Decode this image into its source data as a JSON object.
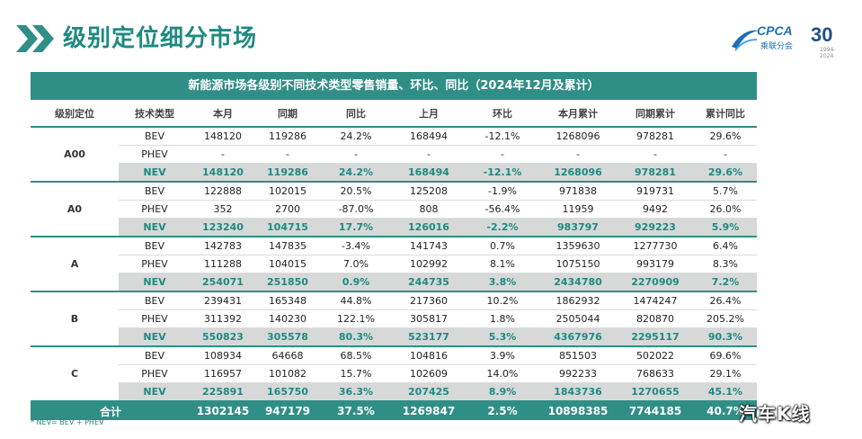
{
  "header": {
    "title": "级别定位细分市场",
    "logo_text": "CPCA",
    "logo_sub": "乘联分会",
    "anniversary": "30",
    "anniversary_years": "1994-2024"
  },
  "table": {
    "caption": "新能源市场各级别不同技术类型零售销量、环比、同比（2024年12月及累计）",
    "columns": [
      "级别定位",
      "技术类型",
      "本月",
      "同期",
      "同比",
      "上月",
      "环比",
      "本月累计",
      "同期累计",
      "累计同比"
    ],
    "groups": [
      {
        "level": "A00",
        "rows": [
          [
            "BEV",
            "148120",
            "119286",
            "24.2%",
            "168494",
            "-12.1%",
            "1268096",
            "978281",
            "29.6%"
          ],
          [
            "PHEV",
            "-",
            "-",
            "-",
            "-",
            "-",
            "-",
            "-",
            "-"
          ],
          [
            "NEV",
            "148120",
            "119286",
            "24.2%",
            "168494",
            "-12.1%",
            "1268096",
            "978281",
            "29.6%"
          ]
        ]
      },
      {
        "level": "A0",
        "rows": [
          [
            "BEV",
            "122888",
            "102015",
            "20.5%",
            "125208",
            "-1.9%",
            "971838",
            "919731",
            "5.7%"
          ],
          [
            "PHEV",
            "352",
            "2700",
            "-87.0%",
            "808",
            "-56.4%",
            "11959",
            "9492",
            "26.0%"
          ],
          [
            "NEV",
            "123240",
            "104715",
            "17.7%",
            "126016",
            "-2.2%",
            "983797",
            "929223",
            "5.9%"
          ]
        ]
      },
      {
        "level": "A",
        "rows": [
          [
            "BEV",
            "142783",
            "147835",
            "-3.4%",
            "141743",
            "0.7%",
            "1359630",
            "1277730",
            "6.4%"
          ],
          [
            "PHEV",
            "111288",
            "104015",
            "7.0%",
            "102992",
            "8.1%",
            "1075150",
            "993179",
            "8.3%"
          ],
          [
            "NEV",
            "254071",
            "251850",
            "0.9%",
            "244735",
            "3.8%",
            "2434780",
            "2270909",
            "7.2%"
          ]
        ]
      },
      {
        "level": "B",
        "rows": [
          [
            "BEV",
            "239431",
            "165348",
            "44.8%",
            "217360",
            "10.2%",
            "1862932",
            "1474247",
            "26.4%"
          ],
          [
            "PHEV",
            "311392",
            "140230",
            "122.1%",
            "305817",
            "1.8%",
            "2505044",
            "820870",
            "205.2%"
          ],
          [
            "NEV",
            "550823",
            "305578",
            "80.3%",
            "523177",
            "5.3%",
            "4367976",
            "2295117",
            "90.3%"
          ]
        ]
      },
      {
        "level": "C",
        "rows": [
          [
            "BEV",
            "108934",
            "64668",
            "68.5%",
            "104816",
            "3.9%",
            "851503",
            "502022",
            "69.6%"
          ],
          [
            "PHEV",
            "116957",
            "101082",
            "15.7%",
            "102609",
            "14.0%",
            "992233",
            "768633",
            "29.1%"
          ],
          [
            "NEV",
            "225891",
            "165750",
            "36.3%",
            "207425",
            "8.9%",
            "1843736",
            "1270655",
            "45.1%"
          ]
        ]
      }
    ],
    "total": [
      "合计",
      "1302145",
      "947179",
      "37.5%",
      "1269847",
      "2.5%",
      "10898385",
      "7744185",
      "40.7%"
    ]
  },
  "footnote": "* NEV= BEV + PHEV",
  "watermark": "汽车K线",
  "colors": {
    "accent": "#2f8e86",
    "title": "#1e8a80",
    "nev_row_bg": "#d7d9d9"
  }
}
